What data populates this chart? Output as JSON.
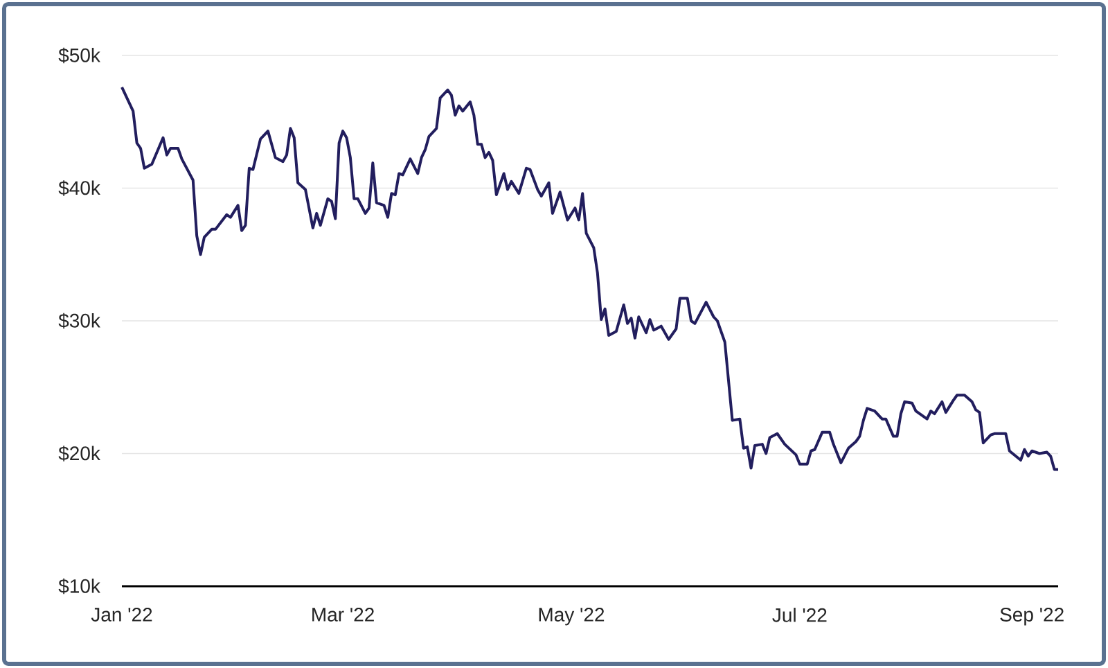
{
  "chart_data": {
    "type": "line",
    "color": "#221e5e",
    "grid": "y",
    "marker": "none",
    "line_style": "solid",
    "xlim": [
      "2022-01-01",
      "2022-09-08"
    ],
    "ylim": [
      10,
      50
    ],
    "xticks": [
      {
        "value": "2022-01-01",
        "label": "Jan '22"
      },
      {
        "value": "2022-03-01",
        "label": "Mar '22"
      },
      {
        "value": "2022-05-01",
        "label": "May '22"
      },
      {
        "value": "2022-07-01",
        "label": "Jul '22"
      },
      {
        "value": "2022-09-01",
        "label": "Sep '22"
      }
    ],
    "yticks": [
      {
        "value": 10,
        "label": "$10k"
      },
      {
        "value": 20,
        "label": "$20k"
      },
      {
        "value": 30,
        "label": "$30k"
      },
      {
        "value": 40,
        "label": "$40k"
      },
      {
        "value": 50,
        "label": "$50k"
      }
    ],
    "x": [
      "2022-01-01",
      "2022-01-04",
      "2022-01-05",
      "2022-01-06",
      "2022-01-07",
      "2022-01-09",
      "2022-01-12",
      "2022-01-13",
      "2022-01-14",
      "2022-01-16",
      "2022-01-17",
      "2022-01-20",
      "2022-01-21",
      "2022-01-22",
      "2022-01-23",
      "2022-01-25",
      "2022-01-26",
      "2022-01-29",
      "2022-01-30",
      "2022-02-01",
      "2022-02-02",
      "2022-02-03",
      "2022-02-04",
      "2022-02-05",
      "2022-02-07",
      "2022-02-09",
      "2022-02-11",
      "2022-02-13",
      "2022-02-14",
      "2022-02-15",
      "2022-02-16",
      "2022-02-17",
      "2022-02-19",
      "2022-02-21",
      "2022-02-22",
      "2022-02-23",
      "2022-02-25",
      "2022-02-26",
      "2022-02-27",
      "2022-02-28",
      "2022-03-01",
      "2022-03-02",
      "2022-03-03",
      "2022-03-04",
      "2022-03-05",
      "2022-03-07",
      "2022-03-08",
      "2022-03-09",
      "2022-03-10",
      "2022-03-12",
      "2022-03-13",
      "2022-03-14",
      "2022-03-15",
      "2022-03-16",
      "2022-03-17",
      "2022-03-19",
      "2022-03-21",
      "2022-03-22",
      "2022-03-23",
      "2022-03-24",
      "2022-03-26",
      "2022-03-27",
      "2022-03-29",
      "2022-03-30",
      "2022-03-31",
      "2022-04-01",
      "2022-04-02",
      "2022-04-04",
      "2022-04-05",
      "2022-04-06",
      "2022-04-07",
      "2022-04-08",
      "2022-04-09",
      "2022-04-10",
      "2022-04-11",
      "2022-04-13",
      "2022-04-14",
      "2022-04-15",
      "2022-04-17",
      "2022-04-19",
      "2022-04-20",
      "2022-04-22",
      "2022-04-23",
      "2022-04-25",
      "2022-04-26",
      "2022-04-28",
      "2022-04-30",
      "2022-05-02",
      "2022-05-03",
      "2022-05-04",
      "2022-05-05",
      "2022-05-07",
      "2022-05-08",
      "2022-05-09",
      "2022-05-10",
      "2022-05-11",
      "2022-05-13",
      "2022-05-15",
      "2022-05-16",
      "2022-05-17",
      "2022-05-18",
      "2022-05-19",
      "2022-05-21",
      "2022-05-22",
      "2022-05-23",
      "2022-05-25",
      "2022-05-27",
      "2022-05-29",
      "2022-05-30",
      "2022-06-01",
      "2022-06-02",
      "2022-06-03",
      "2022-06-06",
      "2022-06-08",
      "2022-06-09",
      "2022-06-11",
      "2022-06-13",
      "2022-06-15",
      "2022-06-16",
      "2022-06-17",
      "2022-06-18",
      "2022-06-19",
      "2022-06-21",
      "2022-06-22",
      "2022-06-23",
      "2022-06-25",
      "2022-06-27",
      "2022-06-30",
      "2022-07-01",
      "2022-07-03",
      "2022-07-04",
      "2022-07-05",
      "2022-07-07",
      "2022-07-09",
      "2022-07-10",
      "2022-07-12",
      "2022-07-14",
      "2022-07-16",
      "2022-07-17",
      "2022-07-18",
      "2022-07-19",
      "2022-07-21",
      "2022-07-23",
      "2022-07-24",
      "2022-07-26",
      "2022-07-27",
      "2022-07-28",
      "2022-07-29",
      "2022-07-31",
      "2022-08-01",
      "2022-08-04",
      "2022-08-05",
      "2022-08-06",
      "2022-08-08",
      "2022-08-09",
      "2022-08-11",
      "2022-08-12",
      "2022-08-14",
      "2022-08-16",
      "2022-08-17",
      "2022-08-18",
      "2022-08-19",
      "2022-08-21",
      "2022-08-22",
      "2022-08-24",
      "2022-08-25",
      "2022-08-26",
      "2022-08-29",
      "2022-08-30",
      "2022-08-31",
      "2022-09-01",
      "2022-09-03",
      "2022-09-05",
      "2022-09-06",
      "2022-09-07",
      "2022-09-08"
    ],
    "values": [
      47.6,
      45.8,
      43.4,
      43.0,
      41.5,
      41.8,
      43.8,
      42.5,
      43.0,
      43.0,
      42.2,
      40.6,
      36.4,
      35.0,
      36.3,
      36.9,
      36.9,
      38.0,
      37.8,
      38.7,
      36.8,
      37.2,
      41.5,
      41.4,
      43.7,
      44.3,
      42.3,
      42.0,
      42.5,
      44.5,
      43.8,
      40.4,
      39.9,
      37.0,
      38.1,
      37.2,
      39.2,
      39.0,
      37.7,
      43.4,
      44.3,
      43.8,
      42.3,
      39.2,
      39.2,
      38.1,
      38.5,
      41.9,
      38.9,
      38.7,
      37.8,
      39.6,
      39.5,
      41.1,
      41.0,
      42.2,
      41.1,
      42.3,
      42.9,
      43.9,
      44.5,
      46.8,
      47.4,
      47.0,
      45.5,
      46.2,
      45.8,
      46.5,
      45.5,
      43.3,
      43.3,
      42.3,
      42.7,
      42.1,
      39.5,
      41.1,
      39.9,
      40.5,
      39.6,
      41.5,
      41.4,
      39.9,
      39.4,
      40.4,
      38.1,
      39.7,
      37.6,
      38.5,
      37.6,
      39.6,
      36.6,
      35.5,
      33.6,
      30.1,
      30.9,
      28.9,
      29.2,
      31.2,
      29.8,
      30.2,
      28.7,
      30.3,
      29.1,
      30.1,
      29.3,
      29.6,
      28.6,
      29.4,
      31.7,
      31.7,
      30.0,
      29.8,
      31.4,
      30.3,
      30.0,
      28.4,
      22.5,
      22.6,
      20.4,
      20.5,
      18.9,
      20.6,
      20.7,
      20.0,
      21.2,
      21.5,
      20.7,
      19.9,
      19.2,
      19.2,
      20.2,
      20.3,
      21.6,
      21.6,
      20.7,
      19.3,
      20.4,
      20.9,
      21.3,
      22.5,
      23.4,
      23.2,
      22.6,
      22.6,
      21.3,
      21.3,
      23.0,
      23.9,
      23.8,
      23.2,
      22.6,
      23.2,
      23.0,
      23.9,
      23.1,
      24.0,
      24.4,
      24.4,
      23.9,
      23.3,
      23.1,
      20.8,
      21.4,
      21.5,
      21.5,
      21.5,
      20.2,
      19.5,
      20.3,
      19.8,
      20.2,
      20.0,
      20.1,
      19.8,
      18.8,
      18.8
    ]
  }
}
